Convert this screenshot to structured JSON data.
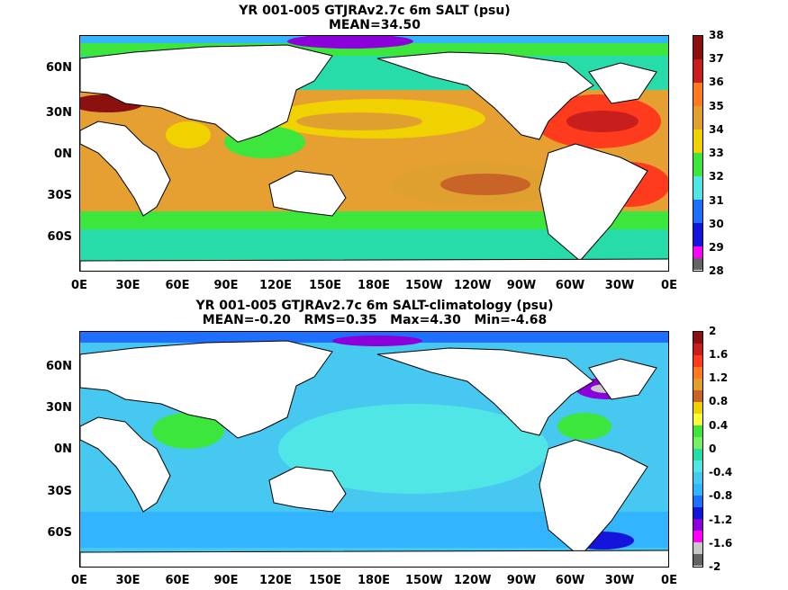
{
  "panels": [
    {
      "title": "YR 001-005 GTJRAv2.7c 6m SALT (psu)",
      "subtitle": "MEAN=34.50",
      "colorbar": {
        "labels": [
          "38",
          "37",
          "36",
          "35",
          "34",
          "33",
          "32",
          "31",
          "30",
          "29",
          "28"
        ],
        "colors": [
          "#8b1010",
          "#c81e1e",
          "#ff3b1e",
          "#ff7a1e",
          "#e0a030",
          "#f0d200",
          "#ffff3c",
          "#3ce63c",
          "#28dcaa",
          "#50e6e6",
          "#32b4ff",
          "#1e6eff",
          "#1414dc",
          "#8c00dc",
          "#ff00ff",
          "#c8c8c8",
          "#646464"
        ]
      },
      "ocean_color": "#e6a032"
    },
    {
      "title": "YR 001-005 GTJRAv2.7c 6m SALT-climatology (psu)",
      "subtitle": "MEAN=-0.20   RMS=0.35   Max=4.30   Min=-4.68",
      "colorbar": {
        "labels": [
          "2",
          "1.6",
          "1.2",
          "0.8",
          "0.4",
          "0",
          "-0.4",
          "-0.8",
          "-1.2",
          "-1.6",
          "-2"
        ],
        "colors": [
          "#8b1010",
          "#c81e1e",
          "#ff3b1e",
          "#e0a030",
          "#f0d200",
          "#ffff3c",
          "#3ce63c",
          "#28dcaa",
          "#50e6e6",
          "#32b4ff",
          "#1e6eff",
          "#1414dc",
          "#8c00dc",
          "#ff00ff",
          "#c8c8c8",
          "#646464"
        ]
      },
      "ocean_color": "#46c8f0"
    }
  ],
  "ylabels": [
    "60N",
    "30N",
    "0N",
    "30S",
    "60S"
  ],
  "xlabels": [
    "0E",
    "30E",
    "60E",
    "90E",
    "120E",
    "150E",
    "180E",
    "150W",
    "120W",
    "90W",
    "60W",
    "30W",
    "0E"
  ]
}
